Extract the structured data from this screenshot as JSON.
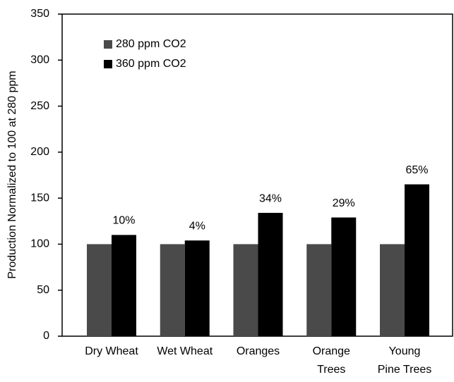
{
  "chart_data": {
    "type": "bar",
    "y_label": "Production Normalized to 100 at 280 ppm",
    "categories": [
      "Dry Wheat",
      "Wet Wheat",
      "Oranges",
      "Orange\nTrees",
      "Young\nPine Trees"
    ],
    "series": [
      {
        "name": "280 ppm CO2",
        "color": "#4a4a4a",
        "values": [
          100,
          100,
          100,
          100,
          100
        ]
      },
      {
        "name": "360 ppm CO2",
        "color": "#000000",
        "values": [
          110,
          104,
          134,
          129,
          165
        ]
      }
    ],
    "annotations": [
      "10%",
      "4%",
      "34%",
      "29%",
      "65%"
    ],
    "ylim": [
      0,
      350
    ],
    "yticks": [
      0,
      50,
      100,
      150,
      200,
      250,
      300,
      350
    ],
    "grid": false,
    "legend": "upper left"
  }
}
